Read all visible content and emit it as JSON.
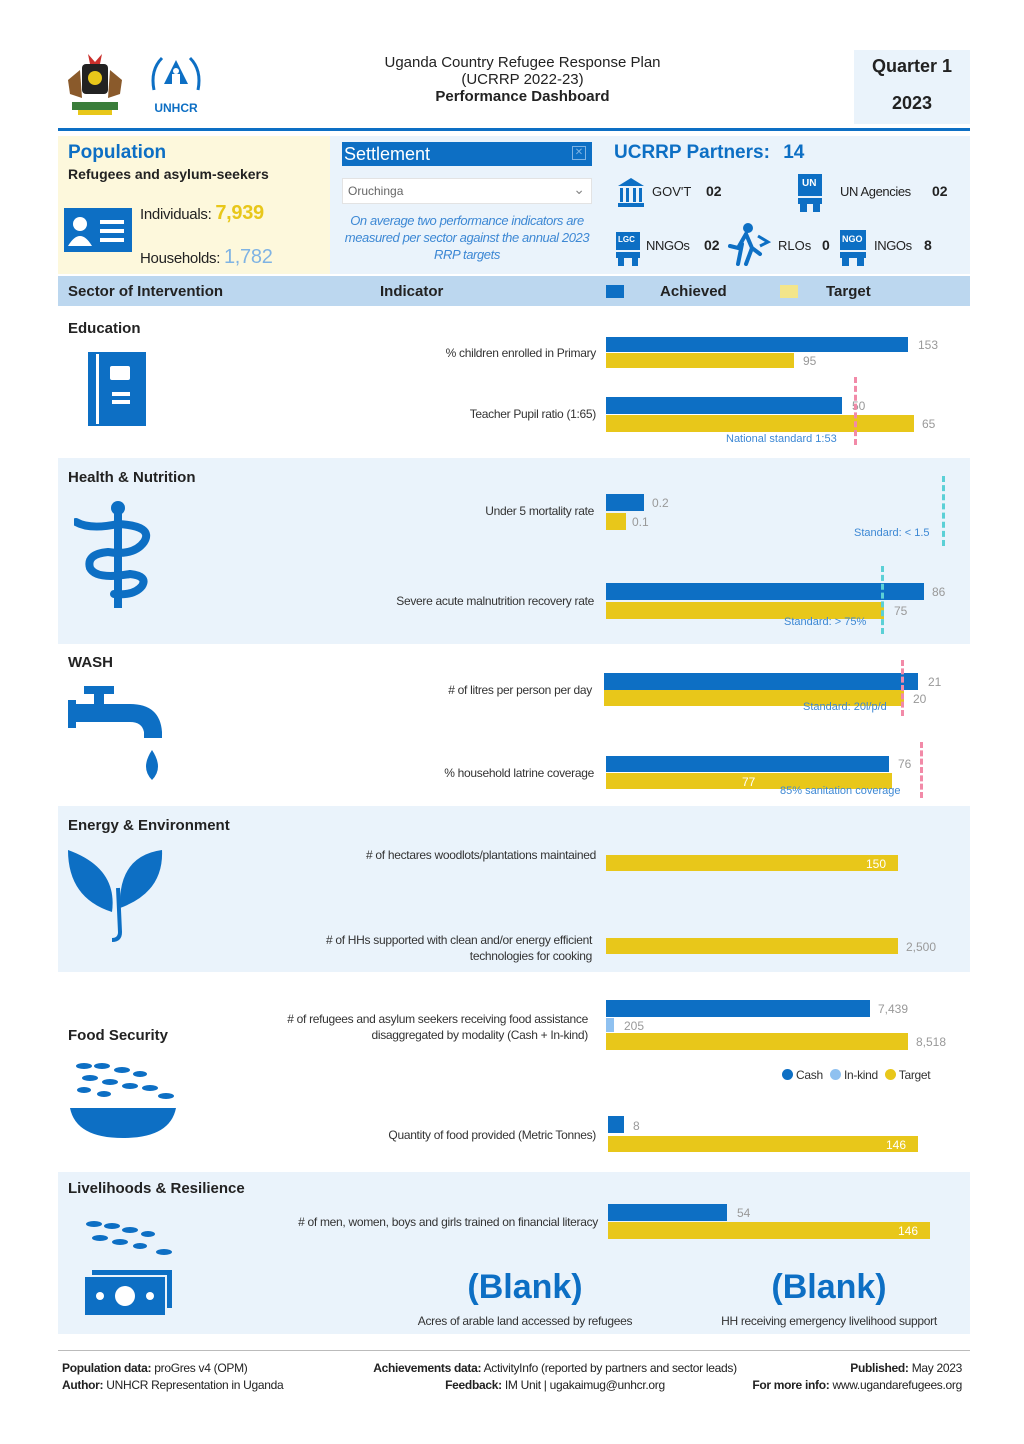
{
  "header": {
    "line1": "Uganda Country Refugee Response Plan",
    "line2": "(UCRRP 2022-23)",
    "line3": "Performance Dashboard",
    "quarter": "Quarter 1",
    "year": "2023",
    "logo_text": "UNHCR"
  },
  "population": {
    "title": "Population",
    "subtitle": "Refugees and asylum-seekers",
    "individuals_label": "Individuals:",
    "individuals_value": "7,939",
    "households_label": "Households:",
    "households_value": "1,782"
  },
  "settlement": {
    "label": "Settlement",
    "selected": "Oruchinga",
    "note": "On average two performance indicators are measured per sector against the annual 2023 RRP targets"
  },
  "partners": {
    "title": "UCRRP Partners:",
    "count": "14",
    "govt_label": "GOV'T",
    "govt_value": "02",
    "un_label": "UN Agencies",
    "un_value": "02",
    "nngo_label": "NNGOs",
    "nngo_value": "02",
    "rlo_label": "RLOs",
    "rlo_value": "0",
    "ingo_label": "INGOs",
    "ingo_value": "8",
    "un_icon_text": "UN",
    "ngo_icon_text": "NGO",
    "lgc_icon_text": "LGC"
  },
  "table_header": {
    "sector": "Sector of Intervention",
    "indicator": "Indicator",
    "achieved": "Achieved",
    "target": "Target"
  },
  "colors": {
    "achieved": "#0d6fc4",
    "target": "#e8c71a",
    "inkind": "#8fc1f0"
  },
  "chart_data": {
    "type": "bar",
    "indicators": [
      {
        "sector": "Education",
        "indicator": "% children enrolled in Primary",
        "achieved": 153,
        "target": 95
      },
      {
        "sector": "Education",
        "indicator": "Teacher Pupil ratio (1:65)",
        "achieved": 50,
        "target": 65,
        "standard": "National standard 1:53"
      },
      {
        "sector": "Health & Nutrition",
        "indicator": "Under 5 mortality rate",
        "achieved": 0.2,
        "target": 0.1,
        "standard": "Standard: < 1.5"
      },
      {
        "sector": "Health & Nutrition",
        "indicator": "Severe acute malnutrition recovery rate",
        "achieved": 86,
        "target": 75,
        "standard": "Standard: > 75%"
      },
      {
        "sector": "WASH",
        "indicator": "# of litres per person per day",
        "achieved": 21,
        "target": 20,
        "standard": "Standard: 20l/p/d"
      },
      {
        "sector": "WASH",
        "indicator": "% household latrine coverage",
        "achieved": 76,
        "target": 77,
        "standard": "85% sanitation coverage"
      },
      {
        "sector": "Energy & Environment",
        "indicator": "# of hectares woodlots/plantations maintained",
        "target": 150
      },
      {
        "sector": "Energy & Environment",
        "indicator": "# of HHs supported with clean and/or energy efficient technologies for cooking",
        "target": 2500
      },
      {
        "sector": "Food Security",
        "indicator": "# of refugees and asylum seekers receiving food assistance disaggregated by modality (Cash + In-kind)",
        "cash": 7439,
        "inkind": 205,
        "target": 8518
      },
      {
        "sector": "Food Security",
        "indicator": "Quantity of food provided (Metric Tonnes)",
        "achieved": 8,
        "target": 146
      },
      {
        "sector": "Livelihoods & Resilience",
        "indicator": "# of men, women, boys and girls trained on financial literacy",
        "achieved": 54,
        "target": 146
      }
    ],
    "legend": [
      "Cash",
      "In-kind",
      "Target"
    ]
  },
  "labels": {
    "edu": {
      "v1a": "153",
      "v1t": "95",
      "v2a": "50",
      "v2t": "65",
      "std": "National standard 1:53"
    },
    "health": {
      "v1a": "0.2",
      "v1t": "0.1",
      "std1": "Standard: < 1.5",
      "v2a": "86",
      "v2t": "75",
      "std2": "Standard: > 75%"
    },
    "wash": {
      "v1a": "21",
      "v1t": "20",
      "std1": "Standard: 20l/p/d",
      "v2a": "76",
      "v2t": "77",
      "std2": "85% sanitation coverage"
    },
    "energy": {
      "v1t": "150",
      "v2t": "2,500"
    },
    "food": {
      "cash": "7,439",
      "inkind": "205",
      "target": "8,518",
      "v2a": "8",
      "v2t": "146",
      "leg_cash": "Cash",
      "leg_inkind": "In-kind",
      "leg_target": "Target"
    },
    "live": {
      "v1a": "54",
      "v1t": "146",
      "blank1": "(Blank)",
      "blank1_label": "Acres of arable land accessed by refugees",
      "blank2": "(Blank)",
      "blank2_label": "HH receiving emergency livelihood support"
    }
  },
  "sectors": {
    "education": "Education",
    "health": "Health & Nutrition",
    "wash": "WASH",
    "energy": "Energy & Environment",
    "food": "Food Security",
    "livelihoods": "Livelihoods & Resilience"
  },
  "indicators": {
    "edu1": "% children enrolled in Primary",
    "edu2": "Teacher Pupil ratio (1:65)",
    "health1": "Under 5 mortality rate",
    "health2": "Severe acute malnutrition recovery rate",
    "wash1": "# of litres per person per day",
    "wash2": "% household latrine coverage",
    "energy1": "# of hectares woodlots/plantations maintained",
    "energy2a": "# of HHs supported with clean and/or energy efficient",
    "energy2b": "technologies for cooking",
    "food1a": "# of refugees and asylum seekers receiving food assistance",
    "food1b": "disaggregated by modality (Cash + In-kind)",
    "food2": "Quantity of food provided (Metric Tonnes)",
    "live1": "# of men, women, boys and girls trained on financial literacy"
  },
  "footer": {
    "pop_label": "Population data:",
    "pop_value": "proGres v4 (OPM)",
    "author_label": "Author:",
    "author_value": "UNHCR Representation in Uganda",
    "ach_label": "Achievements data:",
    "ach_value": "ActivityInfo (reported by partners and sector leads)",
    "fb_label": "Feedback:",
    "fb_value": "IM Unit | ugakaimug@unhcr.org",
    "pub_label": "Published:",
    "pub_value": "May 2023",
    "info_label": "For more info:",
    "info_value": "www.ugandarefugees.org"
  }
}
